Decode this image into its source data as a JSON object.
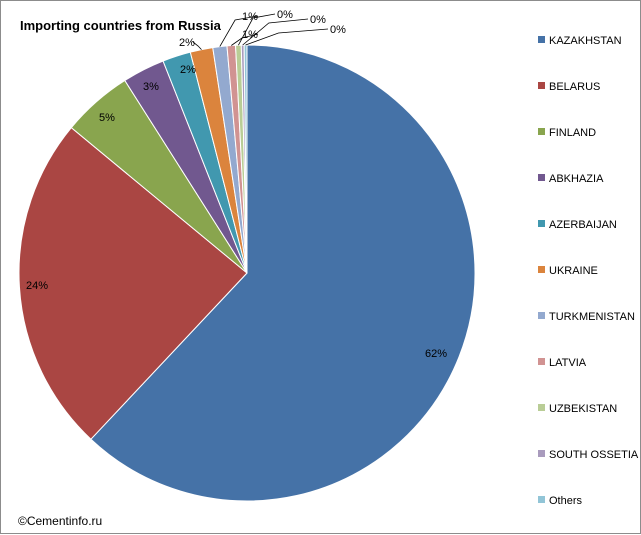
{
  "chart_data": {
    "type": "pie",
    "title": "Importing countries from Russia",
    "categories": [
      "KAZAKHSTAN",
      "BELARUS",
      "FINLAND",
      "ABKHAZIA",
      "AZERBAIJAN",
      "UKRAINE",
      "TURKMENISTAN",
      "LATVIA",
      "UZBEKISTAN",
      "SOUTH OSSETIA",
      "Others"
    ],
    "values": [
      62,
      24,
      5,
      3,
      2,
      1.6,
      1.0,
      0.6,
      0.4,
      0.2,
      0.2
    ],
    "data_labels": [
      "62%",
      "24%",
      "5%",
      "3%",
      "2%",
      "2%",
      "1%",
      "1%",
      "0%",
      "0%",
      "0%"
    ],
    "colors": [
      "#4572A7",
      "#AA4643",
      "#89A54E",
      "#71588F",
      "#4198AF",
      "#DB843D",
      "#93A9CF",
      "#D19392",
      "#B9CD96",
      "#A99BBD",
      "#92C5D7"
    ],
    "legend_position": "right",
    "start_angle_deg": 0,
    "direction": "clockwise"
  },
  "footer": {
    "credit": "©Cementinfo.ru"
  }
}
